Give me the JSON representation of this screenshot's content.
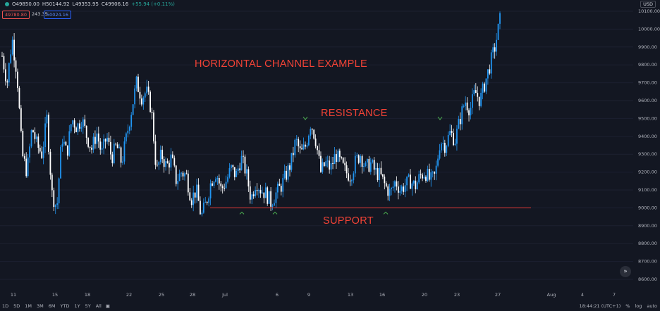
{
  "header": {
    "ohlc": [
      "O49850.00",
      "H50144.92",
      "L49353.95",
      "C49906.16",
      "+55.94 (+0.11%)"
    ],
    "sell_price": "49780.80",
    "spread": "243.35",
    "buy_price": "50024.16",
    "currency": "USD"
  },
  "annotations": {
    "title": "HORIZONTAL CHANNEL EXAMPLE",
    "resistance": "RESISTANCE",
    "support": "SUPPORT"
  },
  "bottom": {
    "ranges": [
      "1D",
      "5D",
      "1M",
      "3M",
      "6M",
      "YTD",
      "1Y",
      "5Y",
      "All"
    ],
    "time": "18:44:21 (UTC+1)",
    "options": [
      "%",
      "log",
      "auto"
    ]
  },
  "chart_data": {
    "type": "candlestick",
    "y_ticks": [
      8600,
      8700,
      8800,
      8900,
      9000,
      9100,
      9200,
      9300,
      9400,
      9500,
      9600,
      9700,
      9800,
      9900,
      10000,
      10100
    ],
    "y_tick_labels": [
      "8600.00",
      "8700.00",
      "8800.00",
      "8900.00",
      "9000.00",
      "9100.00",
      "9200.00",
      "9300.00",
      "9400.00",
      "9500.00",
      "9600.00",
      "9700.00",
      "9800.00",
      "9900.00",
      "10000.00",
      "10100.00"
    ],
    "x_ticks": [
      "11",
      "15",
      "18",
      "22",
      "25",
      "28",
      "Jul",
      "6",
      "9",
      "13",
      "16",
      "20",
      "23",
      "27",
      "Aug",
      "4",
      "7"
    ],
    "support_level": 9000,
    "resistance_level": 9450,
    "colors": {
      "up": "#2196f3",
      "down": "#ffffff",
      "support": "#e53935"
    },
    "close_path": [
      9850,
      9700,
      9950,
      9750,
      9300,
      9200,
      9450,
      9350,
      9300,
      9500,
      9080,
      9000,
      9400,
      9300,
      9500,
      9450,
      9500,
      9400,
      9330,
      9420,
      9300,
      9400,
      9280,
      9350,
      9250,
      9400,
      9550,
      9700,
      9620,
      9650,
      9550,
      9200,
      9300,
      9230,
      9280,
      9150,
      9200,
      9180,
      9050,
      9100,
      8950,
      9030,
      9150,
      9200,
      9100,
      9150,
      9220,
      9180,
      9280,
      9200,
      9050,
      9150,
      9100,
      9080,
      9030,
      9080,
      9120,
      9180,
      9250,
      9380,
      9300,
      9350,
      9480,
      9380,
      9200,
      9250,
      9220,
      9300,
      9250,
      9200,
      9180,
      9260,
      9300,
      9220,
      9250,
      9200,
      9180,
      9120,
      9080,
      9150,
      9100,
      9130,
      9150,
      9120,
      9180,
      9200,
      9150,
      9180,
      9380,
      9350,
      9420,
      9380,
      9500,
      9600,
      9550,
      9650,
      9600,
      9700,
      9800,
      9900,
      10050
    ],
    "support_touches": [
      "Jul 2",
      "Jul 6",
      "Jul 16"
    ],
    "resistance_touches": [
      "Jul 9",
      "Jul 22"
    ]
  }
}
